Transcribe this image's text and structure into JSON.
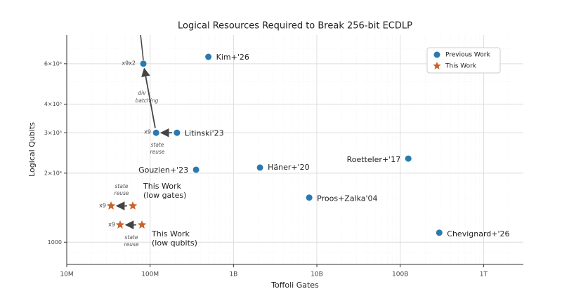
{
  "chart_data": {
    "type": "scatter",
    "title": "Logical Resources Required to Break 256-bit ECDLP",
    "x_label": "Toffoli Gates",
    "y_label": "Logical Qubits",
    "log_x": true,
    "log_y": true,
    "grid": true,
    "legend": "upper right",
    "xlim": [
      10000000,
      3000000000000
    ],
    "ylim": [
      800,
      8000
    ],
    "xticks": [
      {
        "value": 10000000,
        "label": "10M"
      },
      {
        "value": 100000000,
        "label": "100M"
      },
      {
        "value": 1000000000,
        "label": "1B"
      },
      {
        "value": 10000000000,
        "label": "10B"
      },
      {
        "value": 100000000000,
        "label": "100B"
      },
      {
        "value": 1000000000000,
        "label": "1T"
      }
    ],
    "yticks": [
      1000,
      {
        "value": 2000,
        "label": "2×10³"
      },
      {
        "value": 3000,
        "label": "3×10³"
      },
      {
        "value": 4000,
        "label": "4×10³"
      },
      {
        "value": 6000,
        "label": "6×10³"
      }
    ],
    "series": [
      {
        "name": "Previous Work",
        "color": "#2a7ab0",
        "marker": "circle",
        "x": [
          83000000,
          500000000,
          118000000,
          210000000,
          356000000,
          2080000000,
          8100000000,
          125000000000,
          294000000000
        ],
        "values": [
          6000,
          6430,
          3000,
          3000,
          2070,
          2115,
          1565,
          2315,
          1100
        ],
        "labels": [
          null,
          "Kim+'26",
          null,
          "Litinski'23",
          "Gouzien+'23",
          "Häner+'20",
          "Proos+Zalka'04",
          "Roetteler+'17",
          "Chevignard+'26"
        ]
      },
      {
        "name": "This Work",
        "color": "#c8642d",
        "marker": "star",
        "x": [
          34000000,
          62000000,
          43700000,
          79800000
        ],
        "values": [
          1440,
          1440,
          1190,
          1190
        ]
      }
    ],
    "annotations": [
      "x9x2",
      "div",
      "batching",
      "x9",
      "state",
      "reuse",
      "state",
      "reuse",
      "This Work",
      "(low gates)",
      "x9",
      "x9",
      "state",
      "reuse",
      "This Work",
      "(low qubits)"
    ]
  }
}
